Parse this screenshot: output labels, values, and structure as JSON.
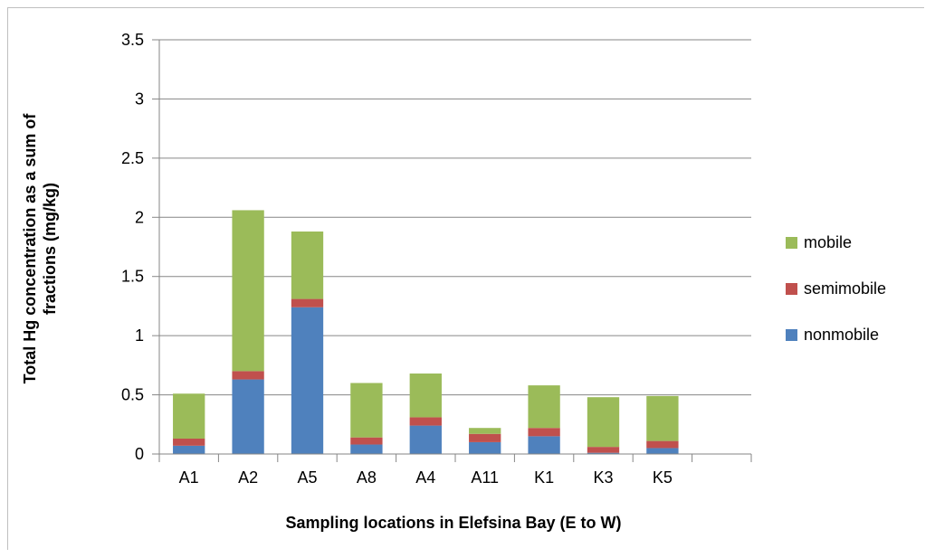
{
  "chart_data": {
    "type": "bar",
    "stacked": true,
    "categories": [
      "A1",
      "A2",
      "A5",
      "A8",
      "A4",
      "A11",
      "K1",
      "K3",
      "K5"
    ],
    "extra_empty_slots": 1,
    "series": [
      {
        "name": "nonmobile",
        "color": "#4f81bd",
        "values": [
          0.07,
          0.63,
          1.24,
          0.08,
          0.24,
          0.1,
          0.15,
          0.01,
          0.05
        ]
      },
      {
        "name": "semimobile",
        "color": "#c0504d",
        "values": [
          0.06,
          0.07,
          0.07,
          0.06,
          0.07,
          0.07,
          0.07,
          0.05,
          0.06
        ]
      },
      {
        "name": "mobile",
        "color": "#9bbb59",
        "values": [
          0.38,
          1.36,
          0.57,
          0.46,
          0.37,
          0.05,
          0.36,
          0.42,
          0.38
        ]
      }
    ],
    "ylim": [
      0,
      3.5
    ],
    "yticks": [
      "0",
      "0.5",
      "1",
      "1.5",
      "2",
      "2.5",
      "3",
      "3.5"
    ],
    "ylabel_line1": "Total Hg concentration  as a sum of",
    "ylabel_line2": "fractions   (mg/kg)",
    "xlabel": "Sampling locations in Elefsina Bay (E to W)",
    "grid": true,
    "legend_position": "right",
    "legend_order": [
      "mobile",
      "semimobile",
      "nonmobile"
    ]
  }
}
